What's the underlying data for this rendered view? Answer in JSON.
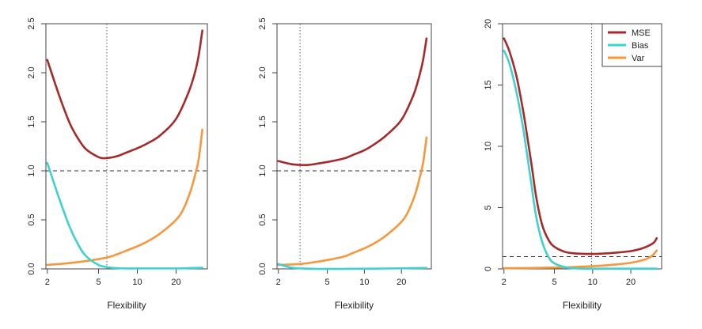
{
  "figure": {
    "background": "#ffffff",
    "colors": {
      "mse": "#a52a2a",
      "bias": "#40d0d0",
      "var": "#f7973c",
      "ref_line": "#333333",
      "axis": "#444444"
    }
  },
  "chart_data": [
    {
      "type": "line",
      "xlabel": "Flexibility",
      "ylabel": "",
      "xscale": "log",
      "xlim": [
        1.95,
        35
      ],
      "ylim": [
        0,
        2.5
      ],
      "xticks": [
        2,
        5,
        10,
        20
      ],
      "yticks": [
        0.0,
        0.5,
        1.0,
        1.5,
        2.0,
        2.5
      ],
      "ytick_labels": [
        "0.0",
        "0.5",
        "1.0",
        "1.5",
        "2.0",
        "2.5"
      ],
      "hline": 1.0,
      "vline": 5.8,
      "legend": null,
      "series": [
        {
          "key": "mse",
          "color": "#a52a2a",
          "x": [
            2,
            2.5,
            3,
            3.5,
            4,
            5,
            5.8,
            7,
            8,
            10,
            12,
            15,
            20,
            25,
            28,
            30,
            32
          ],
          "y": [
            2.13,
            1.75,
            1.48,
            1.32,
            1.22,
            1.14,
            1.13,
            1.15,
            1.18,
            1.23,
            1.28,
            1.36,
            1.53,
            1.8,
            2.0,
            2.18,
            2.43
          ]
        },
        {
          "key": "bias",
          "color": "#40d0d0",
          "x": [
            2,
            2.5,
            3,
            3.5,
            4,
            5,
            6,
            7,
            8,
            10,
            15,
            20,
            25,
            32
          ],
          "y": [
            1.08,
            0.7,
            0.42,
            0.24,
            0.13,
            0.04,
            0.015,
            0.008,
            0.005,
            0.005,
            0.005,
            0.005,
            0.008,
            0.012
          ]
        },
        {
          "key": "var",
          "color": "#f7973c",
          "x": [
            2,
            3,
            4,
            5,
            6,
            7,
            8,
            10,
            12,
            15,
            20,
            23,
            26,
            28,
            30,
            32
          ],
          "y": [
            0.04,
            0.06,
            0.08,
            0.1,
            0.12,
            0.15,
            0.18,
            0.23,
            0.28,
            0.36,
            0.5,
            0.62,
            0.8,
            0.95,
            1.12,
            1.42
          ]
        }
      ]
    },
    {
      "type": "line",
      "xlabel": "Flexibility",
      "ylabel": "",
      "xscale": "log",
      "xlim": [
        1.95,
        35
      ],
      "ylim": [
        0,
        2.5
      ],
      "xticks": [
        2,
        5,
        10,
        20
      ],
      "yticks": [
        0.0,
        0.5,
        1.0,
        1.5,
        2.0,
        2.5
      ],
      "ytick_labels": [
        "0.0",
        "0.5",
        "1.0",
        "1.5",
        "2.0",
        "2.5"
      ],
      "hline": 1.0,
      "vline": 3.0,
      "legend": null,
      "series": [
        {
          "key": "mse",
          "color": "#a52a2a",
          "x": [
            2,
            2.5,
            3,
            3.5,
            4,
            5,
            6,
            7,
            8,
            10,
            12,
            15,
            20,
            25,
            28,
            30,
            32
          ],
          "y": [
            1.1,
            1.07,
            1.06,
            1.06,
            1.07,
            1.09,
            1.11,
            1.13,
            1.16,
            1.21,
            1.27,
            1.36,
            1.52,
            1.77,
            1.97,
            2.13,
            2.35
          ]
        },
        {
          "key": "bias",
          "color": "#40d0d0",
          "x": [
            2,
            2.5,
            3,
            4,
            5,
            7,
            10,
            15,
            20,
            25,
            32
          ],
          "y": [
            0.05,
            0.015,
            0.005,
            0.0,
            0.0,
            0.0,
            0.002,
            0.004,
            0.006,
            0.008,
            0.01
          ]
        },
        {
          "key": "var",
          "color": "#f7973c",
          "x": [
            2,
            3,
            4,
            5,
            6,
            7,
            8,
            10,
            12,
            15,
            20,
            23,
            26,
            28,
            30,
            32
          ],
          "y": [
            0.04,
            0.05,
            0.07,
            0.09,
            0.11,
            0.13,
            0.16,
            0.21,
            0.26,
            0.34,
            0.48,
            0.6,
            0.77,
            0.92,
            1.08,
            1.34
          ]
        }
      ]
    },
    {
      "type": "line",
      "xlabel": "Flexibility",
      "ylabel": "",
      "xscale": "log",
      "xlim": [
        1.95,
        35
      ],
      "ylim": [
        0,
        20
      ],
      "xticks": [
        2,
        5,
        10,
        20
      ],
      "yticks": [
        0,
        5,
        10,
        15,
        20
      ],
      "ytick_labels": [
        "0",
        "5",
        "10",
        "15",
        "20"
      ],
      "hline": 1.0,
      "vline": 9.8,
      "legend": {
        "position": "top-right",
        "entries": [
          {
            "key": "mse",
            "label": "MSE"
          },
          {
            "key": "bias",
            "label": "Bias"
          },
          {
            "key": "var",
            "label": "Var"
          }
        ]
      },
      "series": [
        {
          "key": "mse",
          "color": "#a52a2a",
          "x": [
            2,
            2.2,
            2.5,
            2.8,
            3,
            3.3,
            3.6,
            4,
            4.5,
            5,
            6,
            7,
            8,
            10,
            12,
            15,
            20,
            25,
            30,
            32
          ],
          "y": [
            18.8,
            17.8,
            15.8,
            13.2,
            11.3,
            8.5,
            5.8,
            3.6,
            2.35,
            1.8,
            1.4,
            1.28,
            1.24,
            1.22,
            1.25,
            1.32,
            1.45,
            1.7,
            2.1,
            2.5
          ]
        },
        {
          "key": "bias",
          "color": "#40d0d0",
          "x": [
            2,
            2.2,
            2.5,
            2.8,
            3,
            3.3,
            3.6,
            4,
            4.5,
            5,
            6,
            7,
            8,
            10,
            15,
            20,
            32
          ],
          "y": [
            17.8,
            16.8,
            14.5,
            11.8,
            9.8,
            6.8,
            4.2,
            2.2,
            0.95,
            0.45,
            0.15,
            0.06,
            0.03,
            0.02,
            0.02,
            0.02,
            0.02
          ]
        },
        {
          "key": "var",
          "color": "#f7973c",
          "x": [
            2,
            3,
            4,
            5,
            7,
            10,
            15,
            20,
            25,
            28,
            30,
            32
          ],
          "y": [
            0.05,
            0.07,
            0.09,
            0.11,
            0.15,
            0.22,
            0.35,
            0.5,
            0.72,
            0.92,
            1.15,
            1.5
          ]
        }
      ]
    }
  ]
}
